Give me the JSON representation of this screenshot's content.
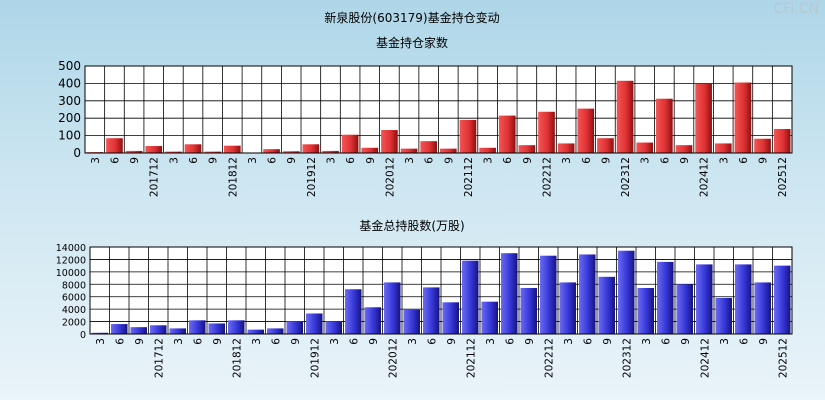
{
  "title": "新泉股份(603179)基金持仓变动",
  "watermark": "CFi.CN",
  "x_tick_labels": [
    "3",
    "6",
    "9",
    "201712",
    "3",
    "6",
    "9",
    "201812",
    "3",
    "6",
    "9",
    "201912",
    "3",
    "6",
    "9",
    "202012",
    "3",
    "6",
    "9",
    "202112",
    "3",
    "6",
    "9",
    "202212",
    "3",
    "6",
    "9",
    "202312",
    "3",
    "6",
    "9",
    "202412",
    "3",
    "6",
    "9",
    "202512"
  ],
  "colors": {
    "top_bar": "#e8393c",
    "bottom_bar": "#3b3bdc",
    "grid": "#000000",
    "plot_bg": "#ffffff"
  },
  "chart_data": [
    {
      "type": "bar",
      "title": "基金持仓家数",
      "ylim": [
        0,
        500
      ],
      "yticks": [
        0,
        100,
        200,
        300,
        400,
        500
      ],
      "grid": true,
      "periods": [
        "201703",
        "201706",
        "201709",
        "201712",
        "201803",
        "201806",
        "201809",
        "201812",
        "201903",
        "201906",
        "201909",
        "201912",
        "202003",
        "202006",
        "202009",
        "202012",
        "202103",
        "202106",
        "202109",
        "202112",
        "202203",
        "202206",
        "202209",
        "202212",
        "202303",
        "202306",
        "202309",
        "202312",
        "202403",
        "202406",
        "202409",
        "202412",
        "202503",
        "202506",
        "202509",
        "202512"
      ],
      "values": [
        5,
        85,
        12,
        40,
        8,
        50,
        8,
        42,
        3,
        22,
        10,
        50,
        12,
        105,
        30,
        132,
        25,
        68,
        25,
        190,
        30,
        215,
        45,
        237,
        55,
        255,
        85,
        415,
        60,
        312,
        45,
        397,
        55,
        405,
        82,
        138
      ]
    },
    {
      "type": "bar",
      "title": "基金总持股数(万股)",
      "ylim": [
        0,
        14000
      ],
      "yticks": [
        0,
        2000,
        4000,
        6000,
        8000,
        10000,
        12000,
        14000
      ],
      "grid": true,
      "periods": [
        "201703",
        "201706",
        "201709",
        "201712",
        "201803",
        "201806",
        "201809",
        "201812",
        "201903",
        "201906",
        "201909",
        "201912",
        "202003",
        "202006",
        "202009",
        "202012",
        "202103",
        "202106",
        "202109",
        "202112",
        "202203",
        "202206",
        "202209",
        "202212",
        "202303",
        "202306",
        "202309",
        "202312",
        "202403",
        "202406",
        "202409",
        "202412",
        "202503",
        "202506",
        "202509",
        "202512"
      ],
      "values": [
        200,
        1600,
        1100,
        1400,
        900,
        2200,
        1700,
        2200,
        700,
        900,
        2000,
        3300,
        2000,
        7200,
        4300,
        8300,
        3900,
        7500,
        5100,
        11800,
        5200,
        13000,
        7400,
        12600,
        8300,
        12800,
        9200,
        13400,
        7400,
        11600,
        8000,
        11200,
        5800,
        11200,
        8300,
        11000
      ]
    }
  ]
}
